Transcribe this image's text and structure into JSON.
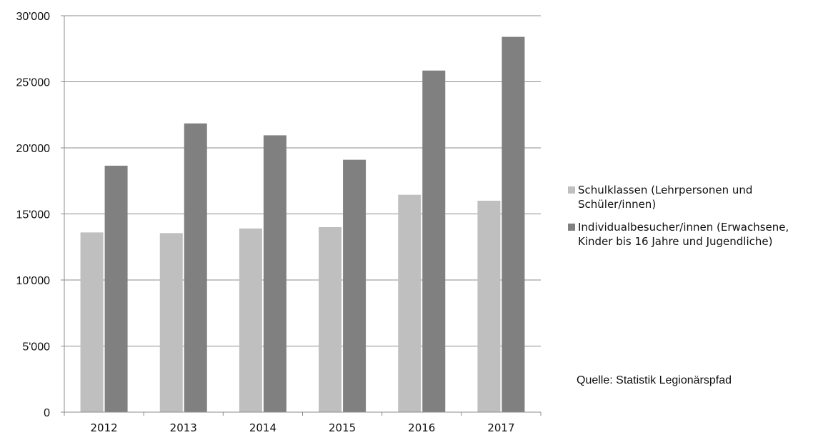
{
  "chart_data": {
    "type": "bar",
    "categories": [
      "2012",
      "2013",
      "2014",
      "2015",
      "2016",
      "2017"
    ],
    "series": [
      {
        "name": "Schulklassen (Lehrpersonen und Schüler/innen)",
        "label_lines": [
          "Schulklassen (Lehrpersonen und",
          "Schüler/innen)"
        ],
        "color": "#bfbfbf",
        "values": [
          13600,
          13550,
          13900,
          14000,
          16450,
          16000
        ]
      },
      {
        "name": "Individualbesucher/innen (Erwachsene, Kinder bis 16 Jahre und Jugendliche)",
        "label_lines": [
          "Individualbesucher/innen (Erwachsene,",
          "Kinder bis 16 Jahre und Jugendliche)"
        ],
        "color": "#808080",
        "values": [
          18650,
          21850,
          20950,
          19100,
          25850,
          28400
        ]
      }
    ],
    "y_ticks": [
      0,
      5000,
      10000,
      15000,
      20000,
      25000,
      30000
    ],
    "y_tick_labels": [
      "0",
      "5'000",
      "10'000",
      "15'000",
      "20'000",
      "25'000",
      "30'000"
    ],
    "ylim": [
      0,
      30000
    ],
    "grid": true,
    "legend_position": "right",
    "title": "",
    "xlabel": "",
    "ylabel": ""
  },
  "source_note": "Quelle: Statistik Legionärspfad"
}
